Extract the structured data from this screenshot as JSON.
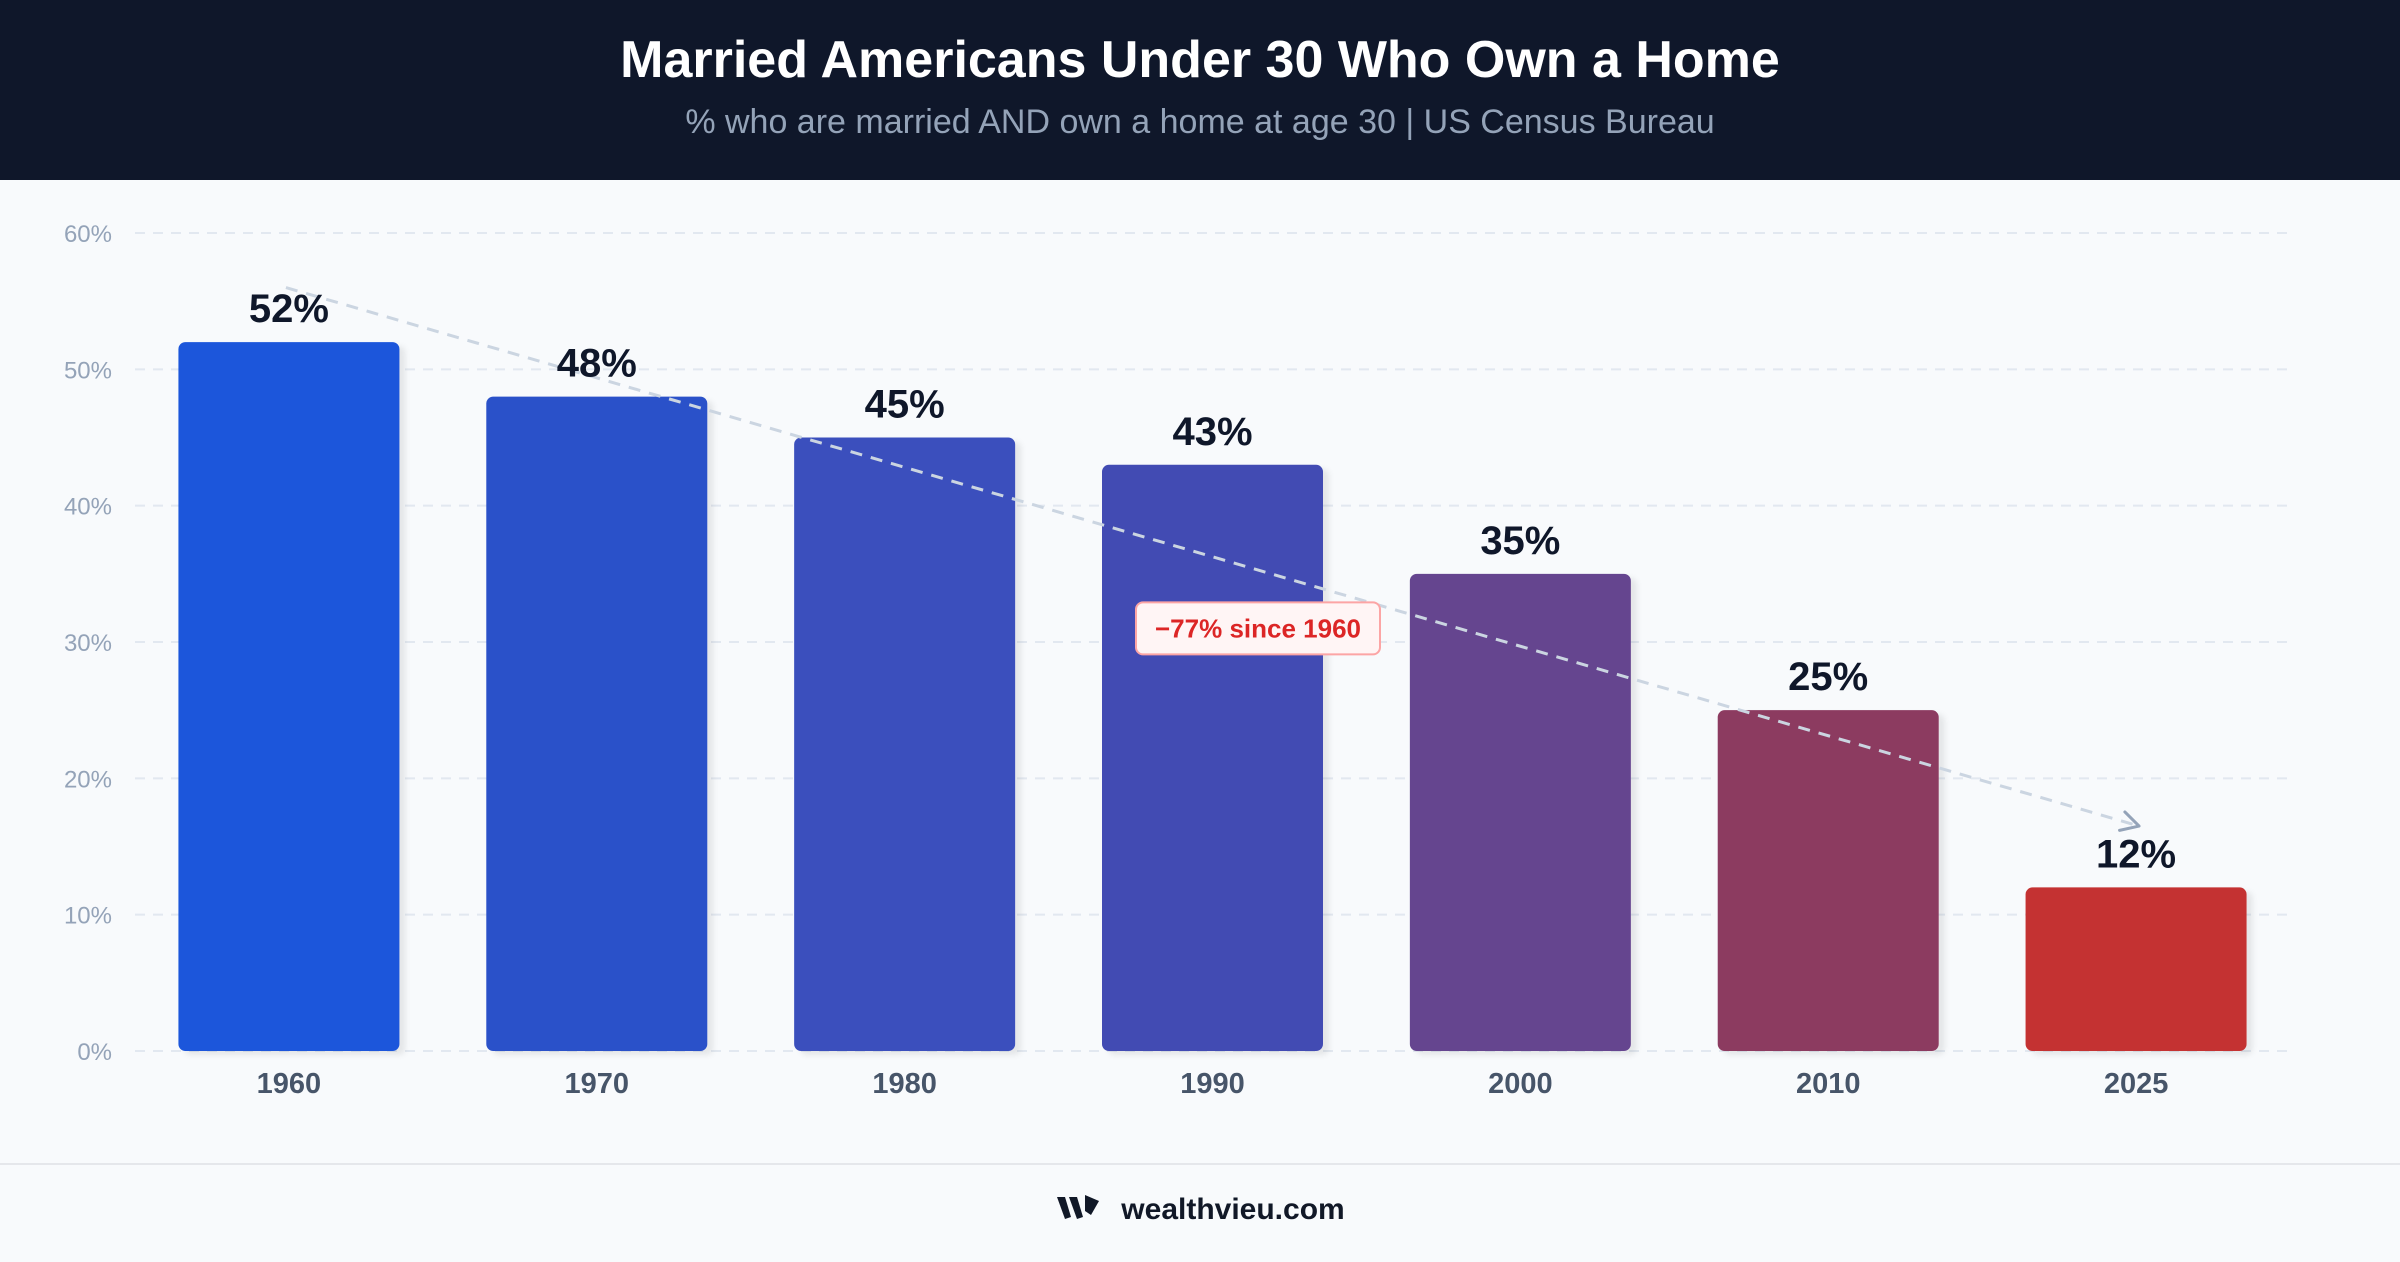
{
  "header": {
    "title": "Married Americans Under 30 Who Own a Home",
    "subtitle": "% who are married AND own a home at age 30  |  US Census Bureau"
  },
  "chart_data": {
    "type": "bar",
    "categories": [
      "1960",
      "1970",
      "1980",
      "1990",
      "2000",
      "2010",
      "2025"
    ],
    "values": [
      52,
      48,
      45,
      43,
      35,
      25,
      12
    ],
    "value_labels": [
      "52%",
      "48%",
      "45%",
      "43%",
      "35%",
      "25%",
      "12%"
    ],
    "bar_colors": [
      "#1a56db",
      "#2b51c9",
      "#3a4fbd",
      "#434bb3",
      "#65448f",
      "#8c3a61",
      "#c43030"
    ],
    "ylim": [
      0,
      60
    ],
    "y_ticks": [
      0,
      10,
      20,
      30,
      40,
      50,
      60
    ],
    "y_tick_labels": [
      "0%",
      "10%",
      "20%",
      "30%",
      "40%",
      "50%",
      "60%"
    ],
    "grid": true,
    "trend_line": {
      "from": 56,
      "to": 16.5,
      "style": "dashed"
    },
    "annotation": {
      "text": "−77% since 1960",
      "value": 31
    }
  },
  "footer": {
    "brand": "wealthvieu.com",
    "logo_icon": "wealthvieu-logo-icon"
  },
  "colors": {
    "header_bg": "#0f172a",
    "annotation_text": "#dc2626",
    "value_label": "#0f172a",
    "axis_label": "#475569"
  }
}
